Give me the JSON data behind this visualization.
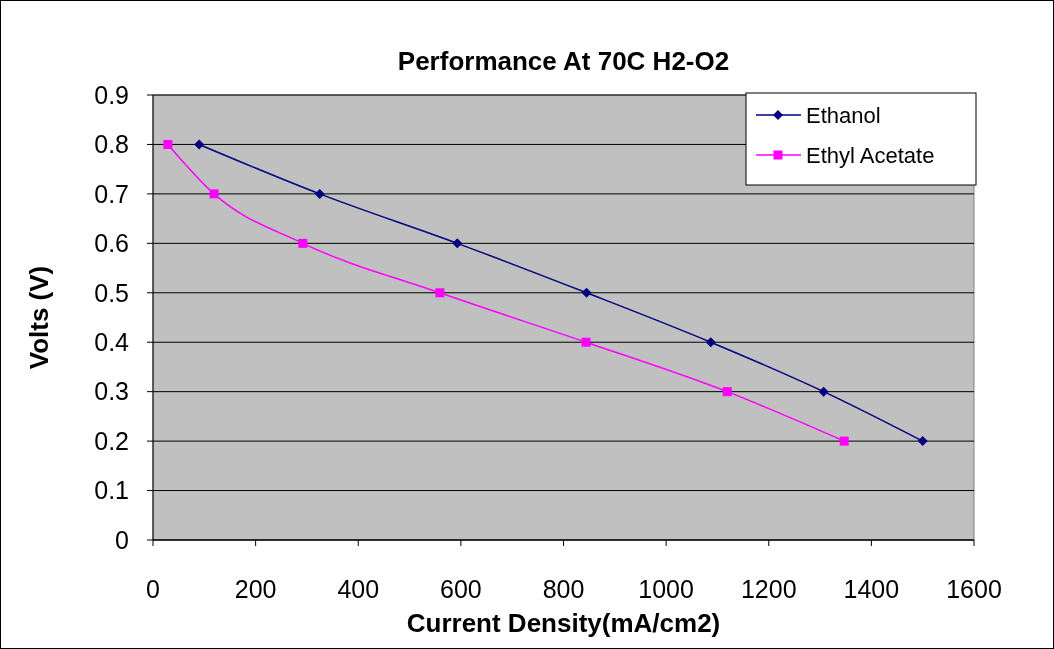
{
  "chart_data": {
    "type": "line",
    "title": "Performance At 70C H2-O2",
    "xlabel": "Current Density(mA/cm2)",
    "ylabel": "Volts (V)",
    "xlim": [
      0,
      1600
    ],
    "xticks": [
      0,
      200,
      400,
      600,
      800,
      1000,
      1200,
      1400,
      1600
    ],
    "ylim": [
      0,
      0.9
    ],
    "yticks": [
      0,
      0.1,
      0.2,
      0.3,
      0.4,
      0.5,
      0.6,
      0.7,
      0.8,
      0.9
    ],
    "grid": "y",
    "legend": "top right",
    "series": [
      {
        "name": "Ethanol",
        "color": "#000080",
        "marker": "diamond",
        "x": [
          90,
          325,
          593,
          845,
          1087,
          1307,
          1500
        ],
        "values": [
          0.8,
          0.7,
          0.6,
          0.5,
          0.4,
          0.3,
          0.2
        ]
      },
      {
        "name": "Ethyl Acetate",
        "color": "#ff00ff",
        "marker": "square",
        "x": [
          29,
          119,
          292,
          559,
          844,
          1119,
          1347
        ],
        "values": [
          0.8,
          0.7,
          0.6,
          0.5,
          0.4,
          0.3,
          0.2
        ]
      }
    ]
  }
}
